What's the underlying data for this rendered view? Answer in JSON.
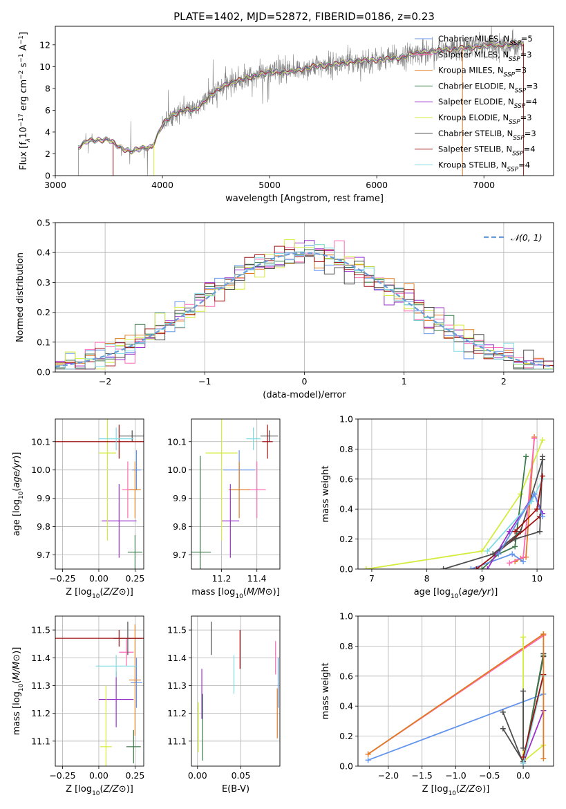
{
  "figure_title": "PLATE=1402, MJD=52872, FIBERID=0186, z=0.23",
  "colors": {
    "chabrier_miles": "#6495ed",
    "salpeter_miles": "#ff69b4",
    "kroupa_miles": "#e07b22",
    "chabrier_elodie": "#3c7a4a",
    "salpeter_elodie": "#9932cc",
    "kroupa_elodie": "#d4ec3c",
    "chabrier_stelib": "#4d4d4d",
    "salpeter_stelib": "#a01010",
    "kroupa_stelib": "#7fdbe3",
    "data": "#808080"
  },
  "legend": {
    "labels": [
      "Chabrier MILES, N",
      "Salpeter MILES, N",
      "Kroupa MILES, N",
      "Chabrier ELODIE, N",
      "Salpeter ELODIE, N",
      "Kroupa ELODIE, N",
      "Chabrier STELIB, N",
      "Salpeter STELIB, N",
      "Kroupa STELIB, N"
    ],
    "sub": "SSP",
    "counts": [
      "=5",
      "=3",
      "=3",
      "=3",
      "=4",
      "=3",
      "=3",
      "=4",
      "=4"
    ]
  },
  "chart_data": [
    {
      "type": "line",
      "id": "spectrum",
      "xlabel": "wavelength [Angstrom, rest frame]",
      "ylabel_parts": [
        "Flux [f",
        "λ",
        "10",
        "−17",
        " erg cm",
        "−2",
        " s",
        "−1",
        " A",
        "−1",
        "]"
      ],
      "xlim": [
        3000,
        7650
      ],
      "ylim": [
        0,
        13.7
      ],
      "xticks": [
        3000,
        4000,
        5000,
        6000,
        7000
      ],
      "yticks": [
        0,
        2,
        4,
        6,
        8,
        10,
        12
      ],
      "data_range": [
        3215,
        7370
      ],
      "continuum": [
        [
          3215,
          2.6
        ],
        [
          3300,
          3.2
        ],
        [
          3500,
          3.3
        ],
        [
          3600,
          2.6
        ],
        [
          3700,
          2.2
        ],
        [
          3800,
          2.5
        ],
        [
          3900,
          2.6
        ],
        [
          3950,
          3.6
        ],
        [
          4000,
          4.7
        ],
        [
          4100,
          5.6
        ],
        [
          4200,
          6.0
        ],
        [
          4300,
          6.0
        ],
        [
          4400,
          6.9
        ],
        [
          4500,
          7.7
        ],
        [
          4600,
          8.4
        ],
        [
          4800,
          9.0
        ],
        [
          5000,
          9.5
        ],
        [
          5200,
          9.5
        ],
        [
          5400,
          10.0
        ],
        [
          5600,
          10.2
        ],
        [
          5800,
          10.5
        ],
        [
          6000,
          10.6
        ],
        [
          6200,
          10.8
        ],
        [
          6400,
          11.3
        ],
        [
          6600,
          11.5
        ],
        [
          6800,
          11.7
        ],
        [
          7000,
          11.9
        ],
        [
          7200,
          12.0
        ],
        [
          7370,
          12.1
        ]
      ]
    },
    {
      "type": "line",
      "id": "residuals",
      "xlabel": "(data-model)/error",
      "ylabel": "Normed distribution",
      "xlim": [
        -2.5,
        2.5
      ],
      "ylim": [
        0,
        0.5
      ],
      "xticks": [
        -2,
        -1,
        0,
        1,
        2
      ],
      "yticks": [
        0.0,
        0.1,
        0.2,
        0.3,
        0.4,
        0.5
      ],
      "bin_width": 0.1,
      "bins_from": -2.5,
      "bins_to": 2.5,
      "gaussian": {
        "mean": 0,
        "sigma": 1,
        "label": "𝒩(0, 1)"
      }
    },
    {
      "type": "scatter",
      "id": "age_vs_z",
      "xlabel": "Z [log10(Z/Z⊙)]",
      "ylabel": "age  [log10(age/yr)]",
      "xlim": [
        -0.3,
        0.31
      ],
      "ylim": [
        9.65,
        10.18
      ],
      "xticks": [
        -0.25,
        0.0,
        0.25
      ],
      "yticks": [
        9.7,
        9.8,
        9.9,
        10.0,
        10.1
      ],
      "points": [
        {
          "model": "chabrier_miles",
          "x": 0.26,
          "y": 10.0,
          "xerr": 0.03,
          "yerr": 0.07
        },
        {
          "model": "salpeter_miles",
          "x": 0.2,
          "y": 9.93,
          "xerr": 0.04,
          "yerr": 0.1
        },
        {
          "model": "kroupa_miles",
          "x": 0.25,
          "y": 9.93,
          "xerr": 0.04,
          "yerr": 0.1
        },
        {
          "model": "chabrier_elodie",
          "x": 0.25,
          "y": 9.71,
          "xerr": 0.05,
          "yerr": 0.06
        },
        {
          "model": "salpeter_elodie",
          "x": 0.14,
          "y": 9.82,
          "xerr": 0.12,
          "yerr": 0.13
        },
        {
          "model": "kroupa_elodie",
          "x": 0.06,
          "y": 10.06,
          "xerr": 0.06,
          "yerr": 0.31
        },
        {
          "model": "chabrier_stelib",
          "x": 0.23,
          "y": 10.12,
          "xerr": 0.09,
          "yerr": 0.02
        },
        {
          "model": "salpeter_stelib",
          "x": 0.14,
          "y": 10.1,
          "xerr": 0.45,
          "yerr": 0.06
        },
        {
          "model": "kroupa_stelib",
          "x": 0.12,
          "y": 10.11,
          "xerr": 0.12,
          "yerr": 0.04
        }
      ]
    },
    {
      "type": "scatter",
      "id": "age_vs_mass",
      "xlabel": "mass [log10(M/M⊙)]",
      "ylabel": "",
      "xlim": [
        11.03,
        11.53
      ],
      "ylim": [
        9.65,
        10.18
      ],
      "xticks": [
        11.2,
        11.4
      ],
      "yticks": [
        9.7,
        9.8,
        9.9,
        10.0,
        10.1
      ],
      "points": [
        {
          "model": "chabrier_miles",
          "x": 11.3,
          "y": 10.0,
          "xerr": 0.09,
          "yerr": 0.07
        },
        {
          "model": "salpeter_miles",
          "x": 11.4,
          "y": 9.93,
          "xerr": 0.05,
          "yerr": 0.1
        },
        {
          "model": "kroupa_miles",
          "x": 11.3,
          "y": 9.93,
          "xerr": 0.06,
          "yerr": 0.1
        },
        {
          "model": "chabrier_elodie",
          "x": 11.08,
          "y": 9.71,
          "xerr": 0.06,
          "yerr": 0.34
        },
        {
          "model": "salpeter_elodie",
          "x": 11.25,
          "y": 9.82,
          "xerr": 0.05,
          "yerr": 0.13
        },
        {
          "model": "kroupa_elodie",
          "x": 11.2,
          "y": 10.06,
          "xerr": 0.09,
          "yerr": 0.31
        },
        {
          "model": "chabrier_stelib",
          "x": 11.47,
          "y": 10.12,
          "xerr": 0.05,
          "yerr": 0.02
        },
        {
          "model": "salpeter_stelib",
          "x": 11.46,
          "y": 10.1,
          "xerr": 0.03,
          "yerr": 0.06
        },
        {
          "model": "kroupa_stelib",
          "x": 11.38,
          "y": 10.11,
          "xerr": 0.04,
          "yerr": 0.04
        }
      ]
    },
    {
      "type": "line",
      "id": "weight_vs_age",
      "xlabel": "age  [log10(age/yr)]",
      "ylabel": "mass weight",
      "xlim": [
        6.75,
        10.3
      ],
      "ylim": [
        0,
        1
      ],
      "xticks": [
        7,
        8,
        9,
        10
      ],
      "yticks": [
        0.0,
        0.2,
        0.4,
        0.6,
        0.8,
        1.0
      ],
      "series": [
        {
          "model": "kroupa_elodie",
          "x": [
            6.9,
            9.0,
            9.7,
            10.1
          ],
          "y": [
            0.0,
            0.12,
            0.5,
            0.86
          ]
        },
        {
          "model": "chabrier_stelib",
          "x": [
            8.3,
            9.2,
            9.7,
            10.1
          ],
          "y": [
            0.0,
            0.1,
            0.25,
            0.73
          ]
        },
        {
          "model": "chabrier_elodie",
          "x": [
            9.0,
            9.3,
            9.6,
            9.8
          ],
          "y": [
            0.0,
            0.1,
            0.15,
            0.75
          ]
        },
        {
          "model": "kroupa_miles",
          "x": [
            9.6,
            9.7,
            9.8,
            9.95
          ],
          "y": [
            0.05,
            0.07,
            0.08,
            0.88
          ]
        },
        {
          "model": "salpeter_miles",
          "x": [
            9.5,
            9.75,
            9.95
          ],
          "y": [
            0.04,
            0.08,
            0.87
          ]
        },
        {
          "model": "chabrier_miles",
          "x": [
            8.8,
            9.55,
            9.75
          ],
          "y": [
            0.0,
            0.1,
            0.05
          ]
        },
        {
          "model": "salpeter_stelib",
          "x": [
            8.9,
            9.25,
            10.05
          ],
          "y": [
            0.0,
            0.1,
            0.35
          ]
        },
        {
          "model": "salpeter_elodie",
          "x": [
            9.1,
            9.5,
            9.95,
            10.1
          ],
          "y": [
            0.0,
            0.25,
            0.5,
            0.37
          ]
        },
        {
          "model": "kroupa_stelib",
          "x": [
            9.1,
            9.9,
            10.1
          ],
          "y": [
            0.12,
            0.45,
            0.6
          ]
        },
        {
          "model": "chabrier_stelib",
          "x": [
            9.2,
            9.6,
            10.05,
            10.1
          ],
          "y": [
            0.1,
            0.2,
            0.25,
            0.75
          ]
        },
        {
          "model": "chabrier_miles",
          "x": [
            9.3,
            9.95,
            10.1
          ],
          "y": [
            0.1,
            0.5,
            0.35
          ]
        },
        {
          "model": "salpeter_stelib",
          "x": [
            9.6,
            10.0,
            10.1
          ],
          "y": [
            0.25,
            0.4,
            0.62
          ]
        }
      ]
    },
    {
      "type": "scatter",
      "id": "mass_vs_z",
      "xlabel": "Z [log10(Z/Z⊙)]",
      "ylabel": "mass [log10(M/M⊙)]",
      "xlim": [
        -0.3,
        0.31
      ],
      "ylim": [
        11.01,
        11.55
      ],
      "xticks": [
        -0.25,
        0.0,
        0.25
      ],
      "yticks": [
        11.1,
        11.2,
        11.3,
        11.4,
        11.5
      ],
      "points": [
        {
          "model": "chabrier_miles",
          "x": 0.26,
          "y": 11.31,
          "xerr": 0.04,
          "yerr": 0.09
        },
        {
          "model": "salpeter_miles",
          "x": 0.19,
          "y": 11.42,
          "xerr": 0.05,
          "yerr": 0.05
        },
        {
          "model": "kroupa_miles",
          "x": 0.25,
          "y": 11.32,
          "xerr": 0.04,
          "yerr": 0.2
        },
        {
          "model": "chabrier_elodie",
          "x": 0.24,
          "y": 11.08,
          "xerr": 0.05,
          "yerr": 0.06
        },
        {
          "model": "salpeter_elodie",
          "x": 0.12,
          "y": 11.25,
          "xerr": 0.12,
          "yerr": 0.1
        },
        {
          "model": "kroupa_elodie",
          "x": 0.05,
          "y": 11.08,
          "xerr": 0.04,
          "yerr": 0.22
        },
        {
          "model": "chabrier_stelib",
          "x": 0.2,
          "y": 11.47,
          "xerr": 0.1,
          "yerr": 0.06
        },
        {
          "model": "salpeter_stelib",
          "x": 0.14,
          "y": 11.47,
          "xerr": 0.45,
          "yerr": 0.03
        },
        {
          "model": "kroupa_stelib",
          "x": 0.12,
          "y": 11.37,
          "xerr": 0.14,
          "yerr": 0.04
        }
      ]
    },
    {
      "type": "scatter",
      "id": "mass_vs_ebv",
      "xlabel": "E(B-V)",
      "ylabel": "",
      "xlim": [
        -0.007,
        0.095
      ],
      "ylim": [
        11.01,
        11.55
      ],
      "xticks": [
        0.0,
        0.05
      ],
      "yticks": [
        11.1,
        11.2,
        11.3,
        11.4,
        11.5
      ],
      "points": [
        {
          "model": "chabrier_miles",
          "x": 0.093,
          "y": 11.31,
          "xerr": 0,
          "yerr": 0.09
        },
        {
          "model": "salpeter_miles",
          "x": 0.09,
          "y": 11.4,
          "xerr": 0,
          "yerr": 0.06
        },
        {
          "model": "kroupa_miles",
          "x": 0.092,
          "y": 11.2,
          "xerr": 0,
          "yerr": 0.09
        },
        {
          "model": "chabrier_elodie",
          "x": 0.006,
          "y": 11.15,
          "xerr": 0,
          "yerr": 0.12
        },
        {
          "model": "salpeter_elodie",
          "x": 0.005,
          "y": 11.27,
          "xerr": 0,
          "yerr": 0.09
        },
        {
          "model": "kroupa_elodie",
          "x": 0.001,
          "y": 11.15,
          "xerr": 0,
          "yerr": 0.09
        },
        {
          "model": "chabrier_stelib",
          "x": 0.016,
          "y": 11.47,
          "xerr": 0,
          "yerr": 0.06
        },
        {
          "model": "salpeter_stelib",
          "x": 0.049,
          "y": 11.43,
          "xerr": 0,
          "yerr": 0.07
        },
        {
          "model": "kroupa_stelib",
          "x": 0.042,
          "y": 11.34,
          "xerr": 0,
          "yerr": 0.07
        }
      ]
    },
    {
      "type": "line",
      "id": "weight_vs_z",
      "xlabel": "Z [log10(Z/Z⊙)]",
      "ylabel": "mass weight",
      "xlim": [
        -2.45,
        0.45
      ],
      "ylim": [
        0,
        1
      ],
      "xticks": [
        -2.0,
        -1.5,
        -1.0,
        -0.5,
        0.0
      ],
      "yticks": [
        0.0,
        0.2,
        0.4,
        0.6,
        0.8,
        1.0
      ],
      "series": [
        {
          "model": "salpeter_miles",
          "x": [
            -2.3,
            0.3
          ],
          "y": [
            0.08,
            0.87
          ]
        },
        {
          "model": "kroupa_miles",
          "x": [
            -2.3,
            0.3
          ],
          "y": [
            0.08,
            0.88
          ]
        },
        {
          "model": "chabrier_miles",
          "x": [
            -2.3,
            0.3
          ],
          "y": [
            0.04,
            0.48
          ]
        },
        {
          "model": "kroupa_elodie",
          "x": [
            0.0,
            0.0,
            0.3
          ],
          "y": [
            0.86,
            0.03,
            0.14
          ]
        },
        {
          "model": "chabrier_stelib",
          "x": [
            -0.3,
            0.0,
            0.3
          ],
          "y": [
            0.25,
            0.03,
            0.73
          ]
        },
        {
          "model": "chabrier_stelib",
          "x": [
            -0.3,
            0.0,
            0.3
          ],
          "y": [
            0.36,
            0.02,
            0.75
          ]
        },
        {
          "model": "chabrier_elodie",
          "x": [
            0.0,
            0.3
          ],
          "y": [
            0.02,
            0.74
          ]
        },
        {
          "model": "salpeter_elodie",
          "x": [
            0.0,
            0.3
          ],
          "y": [
            0.02,
            0.37
          ]
        },
        {
          "model": "kroupa_stelib",
          "x": [
            0.0,
            0.3
          ],
          "y": [
            0.02,
            0.6
          ]
        },
        {
          "model": "salpeter_stelib",
          "x": [
            0.0,
            0.3
          ],
          "y": [
            0.06,
            0.61
          ]
        },
        {
          "model": "chabrier_stelib",
          "x": [
            0.0,
            0.0
          ],
          "y": [
            0.5,
            0.12
          ]
        },
        {
          "model": "kroupa_miles",
          "x": [
            0.3,
            0.3
          ],
          "y": [
            0.05,
            0.88
          ]
        }
      ]
    }
  ]
}
